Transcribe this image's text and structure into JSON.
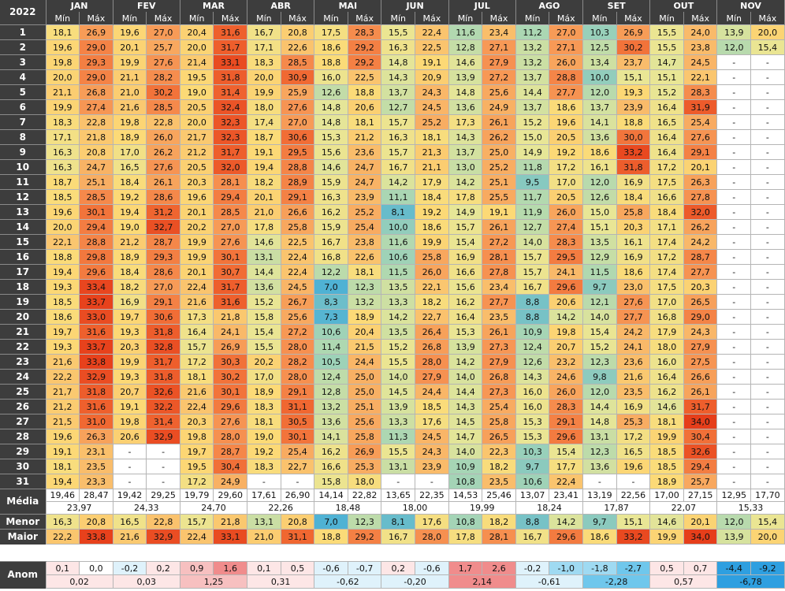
{
  "year": "2022",
  "min_label": "Mín",
  "max_label": "Máx",
  "months": [
    "JAN",
    "FEV",
    "MAR",
    "ABR",
    "MAI",
    "JUN",
    "JUL",
    "AGO",
    "SET",
    "OUT",
    "NOV"
  ],
  "days": [
    {
      "d": "1",
      "v": [
        "18,1",
        "26,9",
        "19,6",
        "27,0",
        "20,4",
        "31,6",
        "16,7",
        "20,8",
        "17,5",
        "28,3",
        "15,5",
        "22,4",
        "11,6",
        "23,4",
        "11,2",
        "27,0",
        "10,3",
        "26,9",
        "15,5",
        "24,0",
        "13,9",
        "20,0"
      ]
    },
    {
      "d": "2",
      "v": [
        "19,6",
        "29,0",
        "20,1",
        "25,7",
        "20,0",
        "31,7",
        "17,1",
        "22,6",
        "18,6",
        "29,2",
        "16,3",
        "22,5",
        "12,8",
        "27,1",
        "13,2",
        "27,1",
        "12,5",
        "30,2",
        "15,5",
        "23,8",
        "12,0",
        "15,4"
      ]
    },
    {
      "d": "3",
      "v": [
        "19,8",
        "29,3",
        "19,9",
        "27,6",
        "21,4",
        "33,1",
        "18,3",
        "28,5",
        "18,8",
        "29,2",
        "14,8",
        "19,1",
        "14,6",
        "27,9",
        "13,2",
        "26,0",
        "13,4",
        "23,7",
        "14,7",
        "24,5",
        "-",
        "-"
      ]
    },
    {
      "d": "4",
      "v": [
        "20,0",
        "29,0",
        "21,1",
        "28,2",
        "19,5",
        "31,8",
        "20,0",
        "30,9",
        "16,0",
        "22,5",
        "14,3",
        "20,9",
        "13,9",
        "27,2",
        "13,7",
        "28,8",
        "10,0",
        "15,1",
        "15,1",
        "22,1",
        "-",
        "-"
      ]
    },
    {
      "d": "5",
      "v": [
        "21,1",
        "26,8",
        "21,0",
        "30,2",
        "19,0",
        "31,4",
        "19,9",
        "25,9",
        "12,6",
        "18,8",
        "13,7",
        "24,3",
        "14,8",
        "25,6",
        "14,4",
        "27,7",
        "12,0",
        "19,3",
        "15,2",
        "28,3",
        "-",
        "-"
      ]
    },
    {
      "d": "6",
      "v": [
        "19,9",
        "27,4",
        "21,6",
        "28,5",
        "20,5",
        "32,4",
        "18,0",
        "27,6",
        "14,8",
        "20,6",
        "12,7",
        "24,5",
        "13,6",
        "24,9",
        "13,7",
        "18,6",
        "13,7",
        "23,9",
        "16,4",
        "31,9",
        "-",
        "-"
      ]
    },
    {
      "d": "7",
      "v": [
        "18,3",
        "22,8",
        "19,8",
        "22,8",
        "20,0",
        "32,3",
        "17,4",
        "27,0",
        "14,8",
        "18,1",
        "15,7",
        "25,2",
        "17,3",
        "26,1",
        "15,2",
        "19,6",
        "14,1",
        "18,8",
        "16,5",
        "25,4",
        "-",
        "-"
      ]
    },
    {
      "d": "8",
      "v": [
        "17,1",
        "21,8",
        "18,9",
        "26,0",
        "21,7",
        "32,3",
        "18,7",
        "30,6",
        "15,3",
        "21,2",
        "16,3",
        "18,1",
        "14,3",
        "26,2",
        "15,0",
        "20,5",
        "13,6",
        "30,0",
        "16,4",
        "27,6",
        "-",
        "-"
      ]
    },
    {
      "d": "9",
      "v": [
        "16,3",
        "20,8",
        "17,0",
        "26,2",
        "21,2",
        "31,7",
        "19,1",
        "29,5",
        "15,6",
        "23,6",
        "15,7",
        "21,3",
        "13,7",
        "25,0",
        "14,9",
        "19,2",
        "18,6",
        "33,2",
        "16,4",
        "29,1",
        "-",
        "-"
      ]
    },
    {
      "d": "10",
      "v": [
        "16,3",
        "24,7",
        "16,5",
        "27,6",
        "20,5",
        "32,0",
        "19,4",
        "28,8",
        "14,6",
        "24,7",
        "16,7",
        "21,1",
        "13,0",
        "25,2",
        "11,8",
        "17,2",
        "16,1",
        "31,8",
        "17,2",
        "20,1",
        "-",
        "-"
      ]
    },
    {
      "d": "11",
      "v": [
        "18,7",
        "25,1",
        "18,4",
        "26,1",
        "20,3",
        "28,1",
        "18,2",
        "28,9",
        "15,9",
        "24,7",
        "14,2",
        "17,9",
        "14,2",
        "25,1",
        "9,5",
        "17,0",
        "12,0",
        "16,9",
        "17,5",
        "26,3",
        "-",
        "-"
      ]
    },
    {
      "d": "12",
      "v": [
        "18,5",
        "28,5",
        "19,2",
        "28,6",
        "19,6",
        "29,4",
        "20,1",
        "29,1",
        "16,3",
        "23,9",
        "11,1",
        "18,4",
        "17,8",
        "25,5",
        "11,7",
        "20,5",
        "12,6",
        "18,4",
        "16,6",
        "27,8",
        "-",
        "-"
      ]
    },
    {
      "d": "13",
      "v": [
        "19,6",
        "30,1",
        "19,4",
        "31,2",
        "20,1",
        "28,5",
        "21,0",
        "26,6",
        "16,2",
        "25,2",
        "8,1",
        "19,2",
        "14,9",
        "19,1",
        "11,9",
        "26,0",
        "15,0",
        "25,8",
        "18,4",
        "32,0",
        "-",
        "-"
      ]
    },
    {
      "d": "14",
      "v": [
        "20,0",
        "29,4",
        "19,0",
        "32,7",
        "20,2",
        "27,0",
        "17,8",
        "25,8",
        "15,9",
        "25,4",
        "10,0",
        "18,6",
        "15,7",
        "26,1",
        "12,7",
        "27,4",
        "15,1",
        "20,3",
        "17,1",
        "26,2",
        "-",
        "-"
      ]
    },
    {
      "d": "15",
      "v": [
        "22,1",
        "28,8",
        "21,2",
        "28,7",
        "19,9",
        "27,6",
        "14,6",
        "22,5",
        "16,7",
        "23,8",
        "11,6",
        "19,9",
        "15,4",
        "27,2",
        "14,0",
        "28,3",
        "13,5",
        "16,1",
        "17,4",
        "24,2",
        "-",
        "-"
      ]
    },
    {
      "d": "16",
      "v": [
        "18,8",
        "29,8",
        "18,9",
        "29,3",
        "19,9",
        "30,1",
        "13,1",
        "22,4",
        "16,8",
        "22,6",
        "10,6",
        "25,8",
        "16,9",
        "28,1",
        "15,7",
        "29,5",
        "12,9",
        "16,9",
        "17,2",
        "28,7",
        "-",
        "-"
      ]
    },
    {
      "d": "17",
      "v": [
        "19,4",
        "29,6",
        "18,4",
        "28,6",
        "20,1",
        "30,7",
        "14,4",
        "22,4",
        "12,2",
        "18,1",
        "11,5",
        "26,0",
        "16,6",
        "27,8",
        "15,7",
        "24,1",
        "11,5",
        "18,6",
        "17,4",
        "27,7",
        "-",
        "-"
      ]
    },
    {
      "d": "18",
      "v": [
        "19,3",
        "33,4",
        "18,2",
        "27,0",
        "22,4",
        "31,7",
        "13,6",
        "24,5",
        "7,0",
        "12,3",
        "13,5",
        "22,1",
        "15,6",
        "23,4",
        "16,7",
        "29,6",
        "9,7",
        "23,0",
        "17,5",
        "20,3",
        "-",
        "-"
      ]
    },
    {
      "d": "19",
      "v": [
        "18,5",
        "33,7",
        "16,9",
        "29,1",
        "21,6",
        "31,6",
        "15,2",
        "26,7",
        "8,3",
        "13,2",
        "13,3",
        "18,2",
        "16,2",
        "27,7",
        "8,8",
        "20,6",
        "12,1",
        "27,6",
        "17,0",
        "26,5",
        "-",
        "-"
      ]
    },
    {
      "d": "20",
      "v": [
        "18,6",
        "33,0",
        "19,7",
        "30,6",
        "17,3",
        "21,8",
        "15,8",
        "25,6",
        "7,3",
        "18,9",
        "14,2",
        "22,7",
        "16,4",
        "23,5",
        "8,8",
        "14,2",
        "14,0",
        "27,7",
        "16,8",
        "29,0",
        "-",
        "-"
      ]
    },
    {
      "d": "21",
      "v": [
        "19,7",
        "31,6",
        "19,3",
        "31,8",
        "16,4",
        "24,1",
        "15,4",
        "27,2",
        "10,6",
        "20,4",
        "13,5",
        "26,4",
        "15,3",
        "26,1",
        "10,9",
        "19,8",
        "15,4",
        "24,2",
        "17,9",
        "24,3",
        "-",
        "-"
      ]
    },
    {
      "d": "22",
      "v": [
        "19,3",
        "33,7",
        "20,3",
        "32,8",
        "15,7",
        "26,9",
        "15,5",
        "28,0",
        "11,4",
        "21,5",
        "15,2",
        "26,8",
        "13,9",
        "27,3",
        "12,4",
        "20,7",
        "15,2",
        "24,1",
        "18,0",
        "27,9",
        "-",
        "-"
      ]
    },
    {
      "d": "23",
      "v": [
        "21,6",
        "33,8",
        "19,9",
        "31,7",
        "17,2",
        "30,3",
        "20,2",
        "28,2",
        "10,5",
        "24,4",
        "15,5",
        "28,0",
        "14,2",
        "27,9",
        "12,6",
        "23,2",
        "12,3",
        "23,6",
        "16,0",
        "27,5",
        "-",
        "-"
      ]
    },
    {
      "d": "24",
      "v": [
        "22,2",
        "32,9",
        "19,3",
        "31,8",
        "18,1",
        "30,2",
        "17,0",
        "28,0",
        "12,4",
        "25,0",
        "14,0",
        "27,9",
        "14,0",
        "26,8",
        "14,3",
        "24,6",
        "9,8",
        "21,6",
        "16,4",
        "26,6",
        "-",
        "-"
      ]
    },
    {
      "d": "25",
      "v": [
        "21,7",
        "31,8",
        "20,7",
        "32,6",
        "21,6",
        "30,1",
        "18,9",
        "29,1",
        "12,8",
        "25,0",
        "14,5",
        "24,4",
        "14,4",
        "27,3",
        "16,0",
        "26,0",
        "12,0",
        "23,5",
        "16,2",
        "26,1",
        "-",
        "-"
      ]
    },
    {
      "d": "26",
      "v": [
        "21,2",
        "31,6",
        "19,1",
        "32,2",
        "22,4",
        "29,6",
        "18,3",
        "31,1",
        "13,2",
        "25,1",
        "13,9",
        "18,5",
        "14,3",
        "25,4",
        "16,0",
        "28,3",
        "14,4",
        "16,9",
        "14,6",
        "31,7",
        "-",
        "-"
      ]
    },
    {
      "d": "27",
      "v": [
        "21,5",
        "31,0",
        "19,8",
        "31,4",
        "20,3",
        "27,6",
        "18,1",
        "30,5",
        "13,6",
        "25,6",
        "13,3",
        "17,6",
        "14,5",
        "25,8",
        "15,3",
        "29,1",
        "14,8",
        "25,3",
        "18,1",
        "34,0",
        "-",
        "-"
      ]
    },
    {
      "d": "28",
      "v": [
        "19,6",
        "26,3",
        "20,6",
        "32,9",
        "19,8",
        "28,0",
        "19,0",
        "30,1",
        "14,1",
        "25,8",
        "11,3",
        "24,5",
        "14,7",
        "26,5",
        "15,3",
        "29,6",
        "13,1",
        "17,2",
        "19,9",
        "30,4",
        "-",
        "-"
      ]
    },
    {
      "d": "29",
      "v": [
        "19,1",
        "23,1",
        "-",
        "-",
        "19,7",
        "28,7",
        "19,2",
        "25,4",
        "16,2",
        "26,9",
        "15,5",
        "24,3",
        "14,0",
        "22,3",
        "10,3",
        "15,4",
        "12,3",
        "16,5",
        "18,5",
        "32,6",
        "-",
        "-"
      ]
    },
    {
      "d": "30",
      "v": [
        "18,1",
        "23,5",
        "-",
        "-",
        "19,5",
        "30,4",
        "18,3",
        "22,7",
        "16,6",
        "25,3",
        "13,1",
        "23,9",
        "10,9",
        "18,2",
        "9,7",
        "17,7",
        "13,6",
        "19,6",
        "18,5",
        "29,4",
        "-",
        "-"
      ]
    },
    {
      "d": "31",
      "v": [
        "19,4",
        "23,3",
        "-",
        "-",
        "17,2",
        "24,9",
        "-",
        "-",
        "15,8",
        "18,0",
        "-",
        "-",
        "10,8",
        "23,5",
        "10,6",
        "22,4",
        "-",
        "-",
        "18,9",
        "25,7",
        "-",
        "-"
      ]
    }
  ],
  "stats": {
    "media_label": "Média",
    "media": [
      "19,46",
      "28,47",
      "19,42",
      "29,25",
      "19,79",
      "29,60",
      "17,61",
      "26,90",
      "14,14",
      "22,82",
      "13,65",
      "22,35",
      "14,53",
      "25,46",
      "13,07",
      "23,41",
      "13,19",
      "22,56",
      "17,00",
      "27,15",
      "12,95",
      "17,70"
    ],
    "media_avg": [
      "23,97",
      "24,33",
      "24,70",
      "22,26",
      "18,48",
      "18,00",
      "19,99",
      "18,24",
      "17,87",
      "22,07",
      "15,33"
    ],
    "menor_label": "Menor",
    "menor": [
      "16,3",
      "20,8",
      "16,5",
      "22,8",
      "15,7",
      "21,8",
      "13,1",
      "20,8",
      "7,0",
      "12,3",
      "8,1",
      "17,6",
      "10,8",
      "18,2",
      "8,8",
      "14,2",
      "9,7",
      "15,1",
      "14,6",
      "20,1",
      "12,0",
      "15,4"
    ],
    "maior_label": "Maior",
    "maior": [
      "22,2",
      "33,8",
      "21,6",
      "32,9",
      "22,4",
      "33,1",
      "21,0",
      "31,1",
      "18,8",
      "29,2",
      "16,7",
      "28,0",
      "17,8",
      "28,1",
      "16,7",
      "29,6",
      "18,6",
      "33,2",
      "19,9",
      "34,0",
      "13,9",
      "20,0"
    ]
  },
  "anom": {
    "label": "Anom",
    "values": [
      "0,1",
      "0,0",
      "-0,2",
      "0,2",
      "0,9",
      "1,6",
      "0,1",
      "0,5",
      "-0,6",
      "-0,7",
      "0,2",
      "-0,6",
      "1,7",
      "2,6",
      "-0,2",
      "-1,0",
      "-1,8",
      "-2,7",
      "0,5",
      "0,7",
      "-4,4",
      "-9,2"
    ],
    "totals": [
      "0,02",
      "0,03",
      "1,25",
      "0,31",
      "-0,62",
      "-0,20",
      "2,14",
      "-0,61",
      "-2,28",
      "0,57",
      "-6,78"
    ]
  }
}
